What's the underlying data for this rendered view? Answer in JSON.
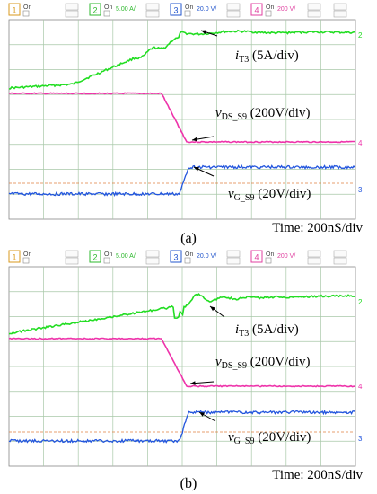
{
  "channel_bar": [
    {
      "num": "1",
      "state": "On",
      "value": "",
      "num_color": "#d99a1e",
      "value_color": "#d99a1e"
    },
    {
      "num": "2",
      "state": "On",
      "value": "5.00 A/",
      "num_color": "#2db82d",
      "value_color": "#2db82d"
    },
    {
      "num": "3",
      "state": "On",
      "value": "20.0 V/",
      "num_color": "#2255cc",
      "value_color": "#2255cc"
    },
    {
      "num": "4",
      "state": "On",
      "value": "200 V/",
      "num_color": "#e040a0",
      "value_color": "#e040a0"
    }
  ],
  "colors": {
    "grid": "#a8c8a8",
    "screen_bg": "#ffffff",
    "current_trace": "#22dd22",
    "vds_trace": "#ee33aa",
    "gate_trace": "#2255dd",
    "trigger_line": "#e08040"
  },
  "chart_data": [
    {
      "type": "line",
      "panel": "a",
      "series": [
        {
          "name": "i_T3 (5A/div)",
          "label_main": "i",
          "label_sub": "T3",
          "label_rest": " (5A/div)"
        },
        {
          "name": "v_DS_S9 (200V/div)",
          "label_main": "v",
          "label_sub": "DS_S9",
          "label_rest": " (200V/div)"
        },
        {
          "name": "v_G_S9 (20V/div)",
          "label_main": "v",
          "label_sub": "G_S9",
          "label_rest": " (20V/div)"
        }
      ],
      "timebase": "Time: 200nS/div",
      "caption": "(a)",
      "ringing": false
    },
    {
      "type": "line",
      "panel": "b",
      "series": [
        {
          "name": "i_T3 (5A/div)",
          "label_main": "i",
          "label_sub": "T3",
          "label_rest": " (5A/div)"
        },
        {
          "name": "v_DS_S9 (200V/div)",
          "label_main": "v",
          "label_sub": "DS_S9",
          "label_rest": " (200V/div)"
        },
        {
          "name": "v_G_S9 (20V/div)",
          "label_main": "v",
          "label_sub": "G_S9",
          "label_rest": " (20V/div)"
        }
      ],
      "timebase": "Time: 200nS/div",
      "caption": "(b)",
      "ringing": true
    }
  ]
}
